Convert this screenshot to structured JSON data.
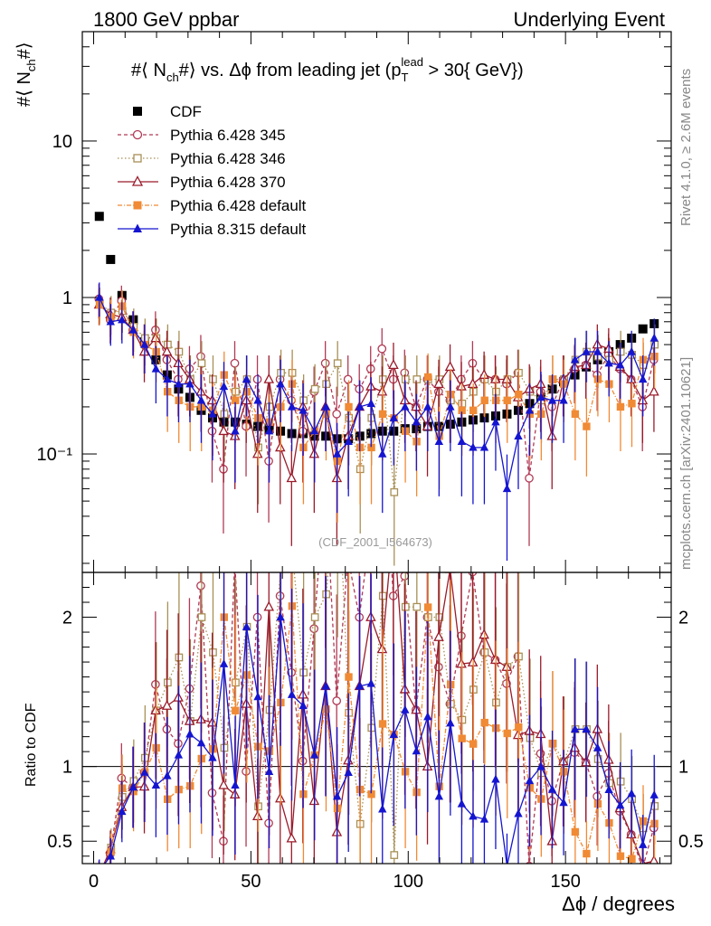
{
  "header": {
    "left": "1800 GeV ppbar",
    "right": "Underlying Event"
  },
  "side_labels": {
    "rivet": "Rivet 4.1.0, ≥ 2.6M events",
    "mcplots": "mcplots.cern.ch [arXiv:2401.10621]"
  },
  "watermark": "(CDF_2001_I564673)",
  "chart_data": {
    "type": "scatter",
    "title": "#⟨ N_ch#⟩ vs. Δϕ from leading jet  (p_T^lead > 30{ GeV})",
    "title_parts": {
      "a": "#⟨ N",
      "b": "ch",
      "c": "#⟩ vs. Δϕ from leading jet  (p",
      "d": "T",
      "e": "lead",
      "f": " > 30{ GeV})"
    },
    "ylabel": {
      "a": "#⟨ N",
      "b": "ch",
      "c": "#⟩"
    },
    "xlabel": "Δϕ / degrees",
    "ratio_ylabel": "Ratio to CDF",
    "xlim": [
      -3.6,
      183.6
    ],
    "ylim": [
      0.0175,
      50
    ],
    "yscale": "log",
    "ratio_ylim": [
      0.35,
      2.3
    ],
    "x_ticks": [
      0,
      50,
      100,
      150
    ],
    "y_ticks": [
      {
        "v": 10,
        "label": "10"
      },
      {
        "v": 1,
        "label": "1"
      },
      {
        "v": 0.1,
        "label": "10⁻¹"
      }
    ],
    "ratio_ticks": [
      {
        "v": 0.5,
        "label": "0.5"
      },
      {
        "v": 1,
        "label": "1"
      },
      {
        "v": 2,
        "label": "2"
      }
    ],
    "x": [
      1.8,
      5.4,
      9.0,
      12.6,
      16.2,
      19.8,
      23.4,
      27.0,
      30.6,
      34.2,
      37.8,
      41.4,
      45.0,
      48.6,
      52.2,
      55.8,
      59.4,
      63.0,
      66.6,
      70.2,
      73.8,
      77.4,
      81.0,
      84.6,
      88.2,
      91.8,
      95.4,
      99.0,
      102.6,
      106.2,
      109.8,
      113.4,
      117.0,
      120.6,
      124.2,
      127.8,
      131.4,
      135.0,
      138.6,
      142.2,
      145.8,
      149.4,
      153.0,
      156.6,
      160.2,
      163.8,
      167.4,
      171.0,
      174.6,
      178.2
    ],
    "series": [
      {
        "name": "CDF",
        "color": "#000000",
        "marker": "square-filled",
        "dash": "",
        "values": [
          3.3,
          1.75,
          1.03,
          0.72,
          0.52,
          0.4,
          0.32,
          0.26,
          0.23,
          0.19,
          0.17,
          0.16,
          0.16,
          0.155,
          0.15,
          0.145,
          0.14,
          0.135,
          0.135,
          0.13,
          0.13,
          0.125,
          0.125,
          0.13,
          0.135,
          0.14,
          0.14,
          0.145,
          0.145,
          0.15,
          0.15,
          0.155,
          0.16,
          0.165,
          0.17,
          0.175,
          0.18,
          0.19,
          0.21,
          0.23,
          0.26,
          0.29,
          0.32,
          0.36,
          0.4,
          0.45,
          0.5,
          0.55,
          0.63,
          0.68
        ]
      },
      {
        "name": "Pythia 6.428 345",
        "color": "#b03a55",
        "marker": "circle-open",
        "dash": "4,3",
        "values": [
          0.98,
          0.72,
          0.95,
          0.62,
          0.5,
          0.62,
          0.4,
          0.3,
          0.35,
          0.42,
          0.14,
          0.08,
          0.38,
          0.15,
          0.3,
          0.09,
          0.3,
          0.22,
          0.14,
          0.25,
          0.38,
          0.18,
          0.3,
          0.26,
          0.35,
          0.47,
          0.3,
          0.33,
          0.2,
          0.3,
          0.25,
          0.22,
          0.3,
          0.38,
          0.3,
          0.3,
          0.28,
          0.33,
          0.07,
          0.25,
          0.2,
          0.3,
          0.35,
          0.37,
          0.32,
          0.43,
          0.35,
          0.3,
          0.2,
          0.4
        ]
      },
      {
        "name": "Pythia 6.428 346",
        "color": "#a89057",
        "marker": "square-open",
        "dash": "1.5,2.5",
        "values": [
          0.92,
          0.8,
          0.82,
          0.65,
          0.55,
          0.55,
          0.5,
          0.45,
          0.3,
          0.38,
          0.3,
          0.18,
          0.25,
          0.3,
          0.11,
          0.2,
          0.33,
          0.33,
          0.22,
          0.26,
          0.28,
          0.38,
          0.17,
          0.08,
          0.17,
          0.3,
          0.057,
          0.3,
          0.3,
          0.3,
          0.3,
          0.22,
          0.21,
          0.25,
          0.3,
          0.25,
          0.3,
          0.33,
          0.25,
          0.22,
          0.3,
          0.3,
          0.4,
          0.45,
          0.42,
          0.4,
          0.45,
          0.43,
          0.37,
          0.5
        ]
      },
      {
        "name": "Pythia 6.428 370",
        "color": "#9a1b2b",
        "marker": "triangle-open",
        "dash": "",
        "values": [
          0.9,
          0.78,
          0.75,
          0.62,
          0.45,
          0.55,
          0.45,
          0.38,
          0.3,
          0.25,
          0.22,
          0.14,
          0.13,
          0.22,
          0.1,
          0.3,
          0.11,
          0.07,
          0.2,
          0.1,
          0.2,
          0.07,
          0.13,
          0.2,
          0.27,
          0.25,
          0.37,
          0.22,
          0.2,
          0.15,
          0.28,
          0.36,
          0.27,
          0.28,
          0.32,
          0.3,
          0.3,
          0.23,
          0.26,
          0.28,
          0.13,
          0.3,
          0.36,
          0.37,
          0.5,
          0.47,
          0.36,
          0.3,
          0.22,
          0.25
        ]
      },
      {
        "name": "Pythia 6.428 default",
        "color": "#f08a35",
        "marker": "square-filled",
        "dash": "5,2,1,2",
        "values": [
          0.9,
          0.75,
          0.88,
          0.6,
          0.5,
          0.45,
          0.25,
          0.22,
          0.2,
          0.2,
          0.19,
          0.32,
          0.22,
          0.25,
          0.17,
          0.16,
          0.2,
          0.28,
          0.11,
          0.14,
          0.18,
          0.09,
          0.2,
          0.11,
          0.11,
          0.18,
          0.17,
          0.14,
          0.12,
          0.31,
          0.13,
          0.24,
          0.19,
          0.19,
          0.22,
          0.22,
          0.22,
          0.24,
          0.18,
          0.18,
          0.3,
          0.28,
          0.18,
          0.15,
          0.3,
          0.28,
          0.2,
          0.21,
          0.4,
          0.42
        ]
      },
      {
        "name": "Pythia 8.315 default",
        "color": "#1515d0",
        "marker": "triangle-filled",
        "dash": "",
        "values": [
          1.0,
          0.7,
          0.72,
          0.62,
          0.5,
          0.35,
          0.3,
          0.28,
          0.28,
          0.22,
          0.18,
          0.27,
          0.14,
          0.3,
          0.22,
          0.14,
          0.28,
          0.2,
          0.19,
          0.14,
          0.2,
          0.1,
          0.12,
          0.2,
          0.21,
          0.1,
          0.17,
          0.2,
          0.16,
          0.2,
          0.12,
          0.2,
          0.12,
          0.11,
          0.11,
          0.16,
          0.06,
          0.13,
          0.19,
          0.23,
          0.22,
          0.22,
          0.4,
          0.45,
          0.45,
          0.38,
          0.37,
          0.45,
          0.3,
          0.55
        ]
      }
    ]
  }
}
